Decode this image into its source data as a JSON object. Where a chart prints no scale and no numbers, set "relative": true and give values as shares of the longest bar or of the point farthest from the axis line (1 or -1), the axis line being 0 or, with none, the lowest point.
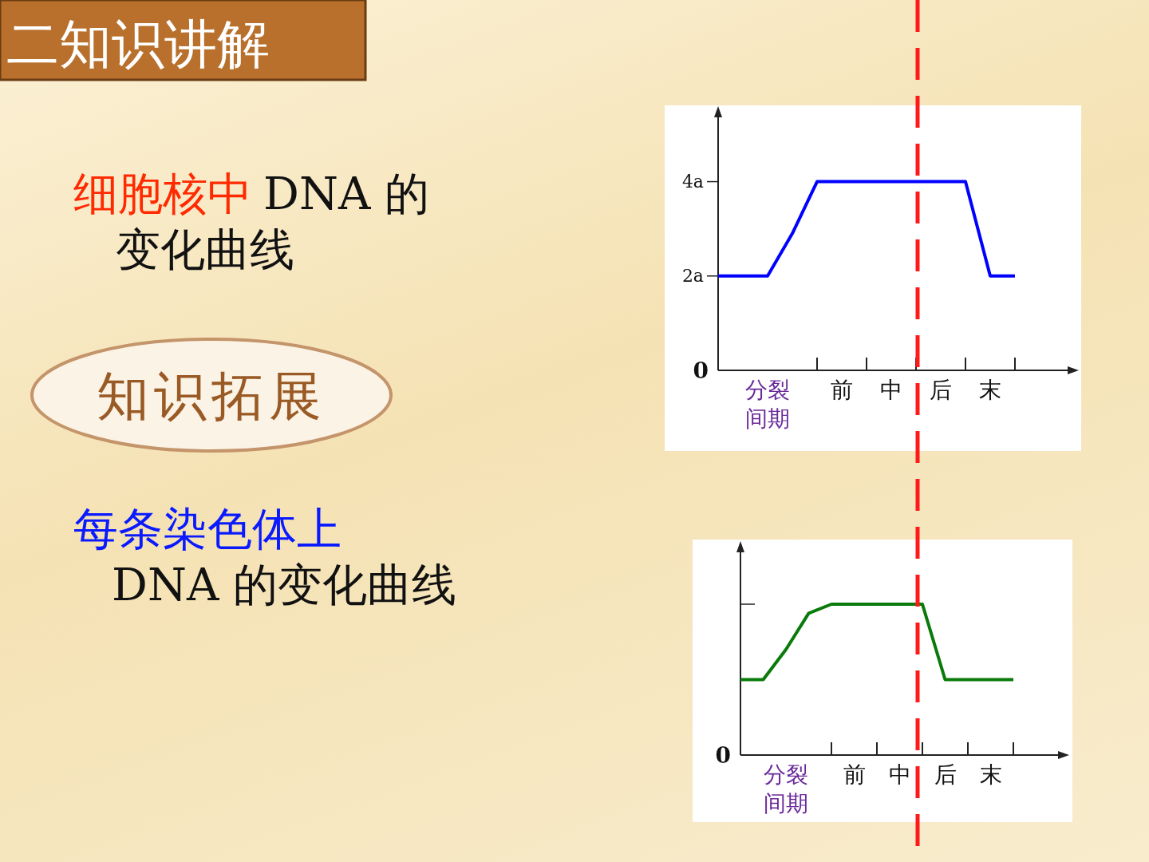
{
  "chart_data": [
    {
      "type": "other",
      "title": "二知识讲解",
      "annotations": [
        "细胞核中",
        "DNA 的变化曲线",
        "知识拓展",
        "每条染色体上",
        "DNA 的变化曲线"
      ]
    },
    {
      "type": "line",
      "categories": [
        null,
        null,
        "分裂间期",
        null,
        null,
        "前",
        null,
        "中",
        null,
        "后",
        null,
        "末",
        null
      ],
      "values": [
        2,
        2,
        2,
        2.9,
        4,
        4,
        4,
        4,
        4,
        4,
        4,
        2,
        2
      ],
      "color": "#0000ff",
      "ylim": [
        0,
        5.6
      ],
      "yticks": [
        0,
        {
          "value": 2,
          "label": "2a"
        },
        {
          "value": 4,
          "label": "4a"
        }
      ]
    },
    {
      "type": "line",
      "relative": true,
      "categories": [
        null,
        null,
        "分裂间期",
        null,
        null,
        "前",
        null,
        "中",
        null,
        "后",
        null,
        "末",
        null
      ],
      "values": [
        0.5,
        0.5,
        0.7,
        0.94,
        1,
        1,
        1,
        1,
        1,
        0.5,
        0.5,
        0.5,
        0.5
      ],
      "color": "#0a7a0a",
      "annotations": [
        "0"
      ]
    }
  ]
}
